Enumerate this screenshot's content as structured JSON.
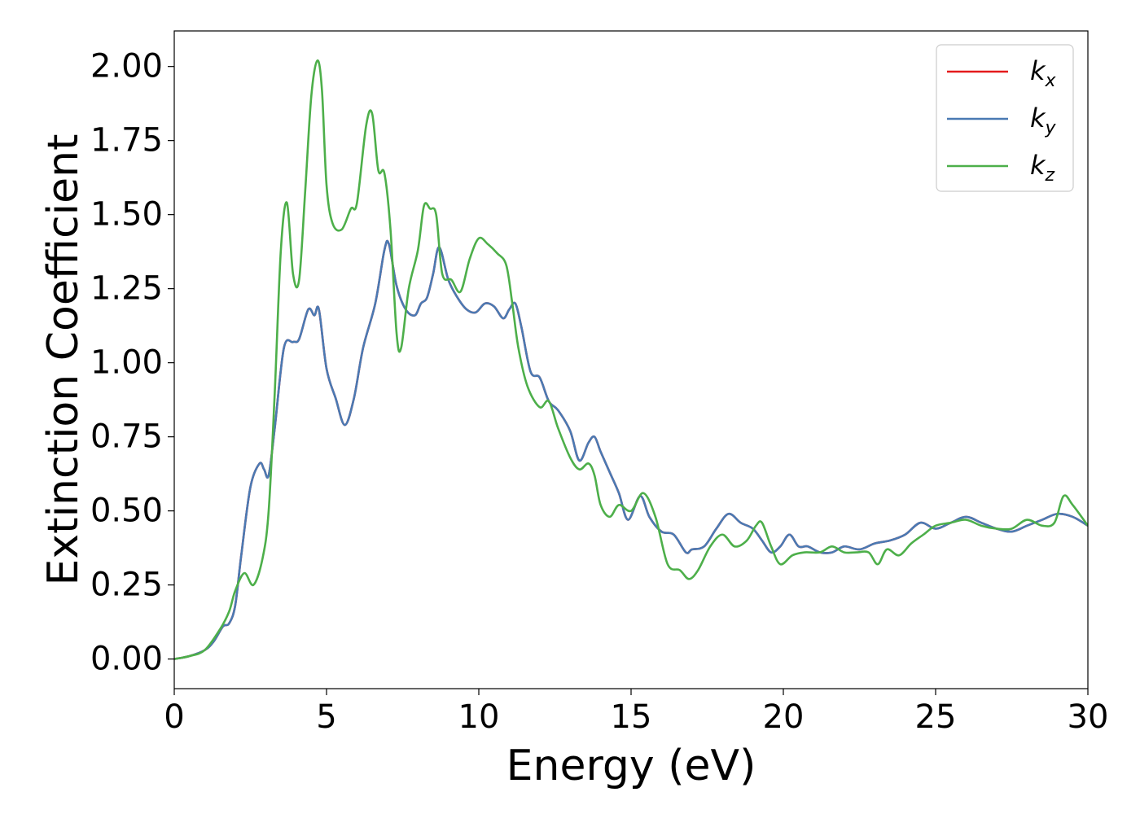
{
  "chart_data": {
    "type": "line",
    "xlabel": "Energy (eV)",
    "ylabel": "Extinction Coefficient",
    "xlim": [
      0,
      30
    ],
    "ylim": [
      -0.1,
      2.12
    ],
    "xticks": [
      0,
      5,
      10,
      15,
      20,
      25,
      30
    ],
    "xtick_labels": [
      "0",
      "5",
      "10",
      "15",
      "20",
      "25",
      "30"
    ],
    "yticks": [
      0,
      0.25,
      0.5,
      0.75,
      1.0,
      1.25,
      1.5,
      1.75,
      2.0
    ],
    "ytick_labels": [
      "0.00",
      "0.25",
      "0.50",
      "0.75",
      "1.00",
      "1.25",
      "1.50",
      "1.75",
      "2.00"
    ],
    "grid": false,
    "legend_position": "top-right",
    "series": [
      {
        "name": "k",
        "sub": "x",
        "color": "#e41a1c",
        "x": [
          0,
          0.5,
          1,
          1.3,
          1.6,
          1.8,
          2,
          2.2,
          2.5,
          2.8,
          2.95,
          3.1,
          3.3,
          3.6,
          3.9,
          4.1,
          4.4,
          4.6,
          4.75,
          5,
          5.3,
          5.6,
          5.9,
          6.2,
          6.6,
          6.9,
          7.05,
          7.3,
          7.6,
          7.9,
          8.1,
          8.3,
          8.5,
          8.7,
          9,
          9.3,
          9.6,
          9.9,
          10.2,
          10.5,
          10.8,
          11,
          11.2,
          11.4,
          11.7,
          12,
          12.3,
          12.6,
          13,
          13.3,
          13.6,
          13.8,
          14,
          14.3,
          14.6,
          14.9,
          15.3,
          15.6,
          16,
          16.4,
          16.8,
          17,
          17.4,
          17.8,
          18.2,
          18.6,
          19,
          19.3,
          19.6,
          19.9,
          20.2,
          20.5,
          20.8,
          21.2,
          21.6,
          22,
          22.5,
          23,
          23.5,
          24,
          24.5,
          25,
          25.5,
          26,
          26.5,
          27,
          27.5,
          28,
          28.5,
          29,
          29.5,
          30
        ],
        "y": [
          0,
          0.01,
          0.03,
          0.06,
          0.11,
          0.12,
          0.18,
          0.35,
          0.58,
          0.66,
          0.64,
          0.62,
          0.78,
          1.05,
          1.07,
          1.08,
          1.18,
          1.16,
          1.18,
          0.98,
          0.88,
          0.79,
          0.88,
          1.05,
          1.2,
          1.38,
          1.4,
          1.26,
          1.18,
          1.16,
          1.2,
          1.22,
          1.3,
          1.39,
          1.28,
          1.22,
          1.18,
          1.17,
          1.2,
          1.19,
          1.15,
          1.18,
          1.2,
          1.12,
          0.97,
          0.95,
          0.87,
          0.84,
          0.77,
          0.67,
          0.73,
          0.75,
          0.7,
          0.63,
          0.56,
          0.47,
          0.55,
          0.48,
          0.43,
          0.42,
          0.36,
          0.37,
          0.38,
          0.44,
          0.49,
          0.46,
          0.44,
          0.4,
          0.36,
          0.38,
          0.42,
          0.38,
          0.38,
          0.36,
          0.36,
          0.38,
          0.37,
          0.39,
          0.4,
          0.42,
          0.46,
          0.44,
          0.46,
          0.48,
          0.46,
          0.44,
          0.43,
          0.45,
          0.47,
          0.49,
          0.48,
          0.45
        ]
      },
      {
        "name": "k",
        "sub": "y",
        "color": "#4a7ab3",
        "x": [
          0,
          0.5,
          1,
          1.3,
          1.6,
          1.8,
          2,
          2.2,
          2.5,
          2.8,
          2.95,
          3.1,
          3.3,
          3.6,
          3.9,
          4.1,
          4.4,
          4.6,
          4.75,
          5,
          5.3,
          5.6,
          5.9,
          6.2,
          6.6,
          6.9,
          7.05,
          7.3,
          7.6,
          7.9,
          8.1,
          8.3,
          8.5,
          8.7,
          9,
          9.3,
          9.6,
          9.9,
          10.2,
          10.5,
          10.8,
          11,
          11.2,
          11.4,
          11.7,
          12,
          12.3,
          12.6,
          13,
          13.3,
          13.6,
          13.8,
          14,
          14.3,
          14.6,
          14.9,
          15.3,
          15.6,
          16,
          16.4,
          16.8,
          17,
          17.4,
          17.8,
          18.2,
          18.6,
          19,
          19.3,
          19.6,
          19.9,
          20.2,
          20.5,
          20.8,
          21.2,
          21.6,
          22,
          22.5,
          23,
          23.5,
          24,
          24.5,
          25,
          25.5,
          26,
          26.5,
          27,
          27.5,
          28,
          28.5,
          29,
          29.5,
          30
        ],
        "y": [
          0,
          0.01,
          0.03,
          0.06,
          0.11,
          0.12,
          0.18,
          0.35,
          0.58,
          0.66,
          0.64,
          0.62,
          0.78,
          1.05,
          1.07,
          1.08,
          1.18,
          1.16,
          1.18,
          0.98,
          0.88,
          0.79,
          0.88,
          1.05,
          1.2,
          1.38,
          1.4,
          1.26,
          1.18,
          1.16,
          1.2,
          1.22,
          1.3,
          1.39,
          1.28,
          1.22,
          1.18,
          1.17,
          1.2,
          1.19,
          1.15,
          1.18,
          1.2,
          1.12,
          0.97,
          0.95,
          0.87,
          0.84,
          0.77,
          0.67,
          0.73,
          0.75,
          0.7,
          0.63,
          0.56,
          0.47,
          0.55,
          0.48,
          0.43,
          0.42,
          0.36,
          0.37,
          0.38,
          0.44,
          0.49,
          0.46,
          0.44,
          0.4,
          0.36,
          0.38,
          0.42,
          0.38,
          0.38,
          0.36,
          0.36,
          0.38,
          0.37,
          0.39,
          0.4,
          0.42,
          0.46,
          0.44,
          0.46,
          0.48,
          0.46,
          0.44,
          0.43,
          0.45,
          0.47,
          0.49,
          0.48,
          0.45
        ]
      },
      {
        "name": "k",
        "sub": "z",
        "color": "#4daf4a",
        "x": [
          0,
          0.5,
          1,
          1.5,
          1.8,
          2,
          2.3,
          2.6,
          2.9,
          3.1,
          3.3,
          3.5,
          3.7,
          3.9,
          4.1,
          4.3,
          4.5,
          4.7,
          4.85,
          5,
          5.2,
          5.5,
          5.8,
          6,
          6.3,
          6.5,
          6.7,
          6.9,
          7.1,
          7.3,
          7.45,
          7.7,
          8,
          8.2,
          8.4,
          8.6,
          8.8,
          9.1,
          9.4,
          9.7,
          10,
          10.3,
          10.6,
          10.9,
          11.1,
          11.3,
          11.6,
          12,
          12.3,
          12.6,
          13,
          13.3,
          13.6,
          13.8,
          14,
          14.3,
          14.6,
          15,
          15.4,
          15.8,
          16.2,
          16.6,
          16.9,
          17.2,
          17.6,
          18,
          18.4,
          18.8,
          19.1,
          19.3,
          19.6,
          19.9,
          20.3,
          20.7,
          21.2,
          21.6,
          22,
          22.4,
          22.8,
          23.1,
          23.4,
          23.8,
          24.2,
          24.6,
          25,
          25.5,
          26,
          26.5,
          27,
          27.5,
          28,
          28.5,
          28.9,
          29.2,
          29.5,
          30
        ],
        "y": [
          0,
          0.01,
          0.03,
          0.1,
          0.16,
          0.23,
          0.29,
          0.25,
          0.34,
          0.5,
          0.9,
          1.38,
          1.54,
          1.3,
          1.28,
          1.58,
          1.9,
          2.02,
          1.92,
          1.6,
          1.47,
          1.45,
          1.52,
          1.54,
          1.8,
          1.84,
          1.65,
          1.64,
          1.45,
          1.1,
          1.05,
          1.25,
          1.38,
          1.53,
          1.52,
          1.5,
          1.3,
          1.28,
          1.24,
          1.35,
          1.42,
          1.4,
          1.37,
          1.33,
          1.2,
          1.05,
          0.92,
          0.85,
          0.87,
          0.78,
          0.68,
          0.64,
          0.66,
          0.62,
          0.52,
          0.48,
          0.52,
          0.5,
          0.56,
          0.48,
          0.32,
          0.3,
          0.27,
          0.3,
          0.38,
          0.42,
          0.38,
          0.4,
          0.45,
          0.46,
          0.38,
          0.32,
          0.35,
          0.36,
          0.36,
          0.38,
          0.36,
          0.36,
          0.36,
          0.32,
          0.37,
          0.35,
          0.39,
          0.42,
          0.45,
          0.46,
          0.47,
          0.45,
          0.44,
          0.44,
          0.47,
          0.45,
          0.46,
          0.55,
          0.52,
          0.45
        ]
      }
    ]
  }
}
